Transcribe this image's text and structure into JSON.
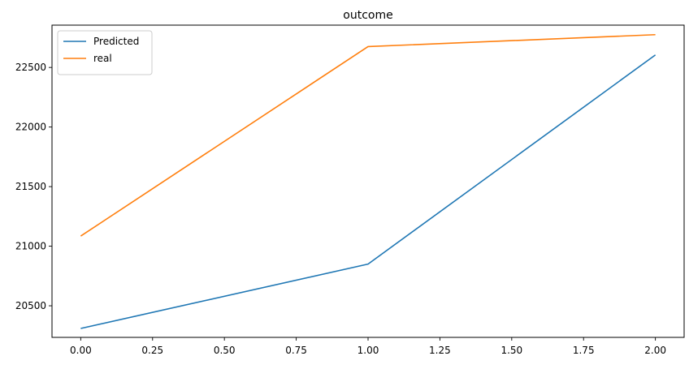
{
  "chart_data": {
    "type": "line",
    "title": "outcome",
    "xlabel": "",
    "ylabel": "",
    "x": [
      0,
      1,
      2
    ],
    "xlim": [
      -0.1,
      2.1
    ],
    "ylim": [
      20235,
      22855
    ],
    "xticks": [
      "0.00",
      "0.25",
      "0.50",
      "0.75",
      "1.00",
      "1.25",
      "1.50",
      "1.75",
      "2.00"
    ],
    "xtick_values": [
      0,
      0.25,
      0.5,
      0.75,
      1.0,
      1.25,
      1.5,
      1.75,
      2.0
    ],
    "yticks": [
      "20500",
      "21000",
      "21500",
      "22000",
      "22500"
    ],
    "ytick_values": [
      20500,
      21000,
      21500,
      22000,
      22500
    ],
    "grid": false,
    "legend_position": "top-left",
    "series": [
      {
        "name": "Predicted",
        "color": "#1f77b4",
        "values": [
          20310,
          20850,
          22605
        ]
      },
      {
        "name": "real",
        "color": "#ff7f0e",
        "values": [
          21085,
          22675,
          22775
        ]
      }
    ]
  }
}
